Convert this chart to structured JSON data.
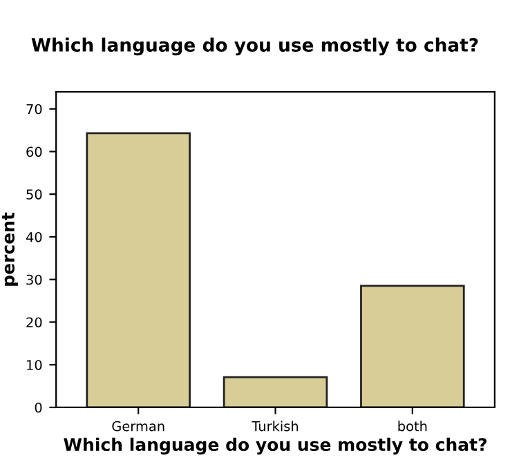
{
  "chart_data": {
    "type": "bar",
    "title": "Which language do you use mostly to chat?",
    "xlabel": "Which language do you use mostly to chat?",
    "ylabel": "percent",
    "categories": [
      "German",
      "Turkish",
      "both"
    ],
    "values": [
      64.3,
      7.1,
      28.5
    ],
    "color": "#d8cd96",
    "ylim": [
      0,
      74
    ],
    "yticks": [
      0,
      10,
      20,
      30,
      40,
      50,
      60,
      70
    ],
    "grid": false
  }
}
